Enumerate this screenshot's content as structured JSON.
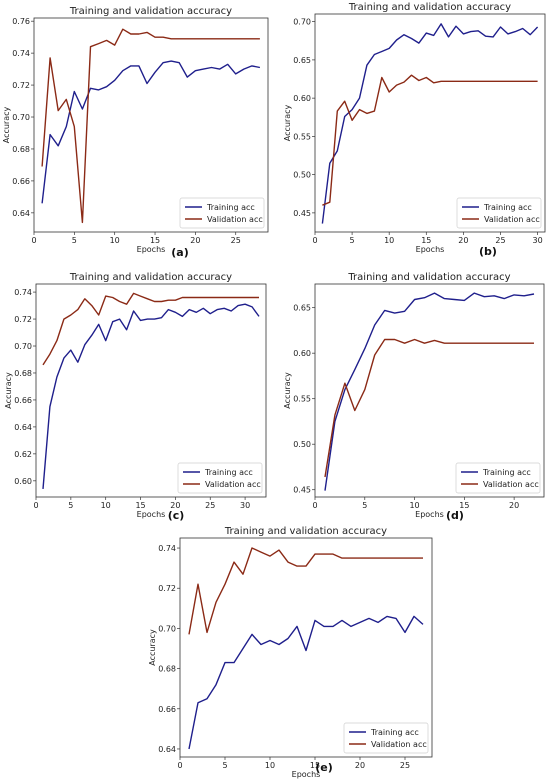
{
  "colors": {
    "training": "#1f1f8c",
    "validation": "#8b2a16"
  },
  "chart_data": [
    {
      "type": "line",
      "panel": "(a)",
      "title": "Training and validation accuracy",
      "xlabel": "Epochs",
      "ylabel": "Accuracy",
      "xlim": [
        0,
        29
      ],
      "ylim": [
        0.628,
        0.762
      ],
      "xticks": [
        0,
        5,
        10,
        15,
        20,
        25
      ],
      "yticks": [
        0.64,
        0.66,
        0.68,
        0.7,
        0.72,
        0.74,
        0.76
      ],
      "ytick_labels": [
        "0.64",
        "0.66",
        "0.68",
        "0.70",
        "0.72",
        "0.74",
        "0.76"
      ],
      "legend": "lower right",
      "series": [
        {
          "name": "Training acc",
          "x": [
            1,
            2,
            3,
            4,
            5,
            6,
            7,
            8,
            9,
            10,
            11,
            12,
            13,
            14,
            15,
            16,
            17,
            18,
            19,
            20,
            21,
            22,
            23,
            24,
            25,
            26,
            27,
            28
          ],
          "values": [
            0.646,
            0.689,
            0.682,
            0.694,
            0.716,
            0.705,
            0.718,
            0.717,
            0.719,
            0.723,
            0.729,
            0.732,
            0.732,
            0.721,
            0.728,
            0.734,
            0.735,
            0.734,
            0.725,
            0.729,
            0.73,
            0.731,
            0.73,
            0.733,
            0.727,
            0.73,
            0.732,
            0.731
          ]
        },
        {
          "name": "Validation acc",
          "x": [
            1,
            2,
            3,
            4,
            5,
            6,
            7,
            8,
            9,
            10,
            11,
            12,
            13,
            14,
            15,
            16,
            17,
            18,
            19,
            20,
            21,
            22,
            23,
            24,
            25,
            26,
            27,
            28
          ],
          "values": [
            0.669,
            0.737,
            0.704,
            0.711,
            0.694,
            0.634,
            0.744,
            0.746,
            0.748,
            0.745,
            0.755,
            0.752,
            0.752,
            0.753,
            0.75,
            0.75,
            0.749,
            0.749,
            0.749,
            0.749,
            0.749,
            0.749,
            0.749,
            0.749,
            0.749,
            0.749,
            0.749,
            0.749
          ]
        }
      ]
    },
    {
      "type": "line",
      "panel": "(b)",
      "title": "Training and validation accuracy",
      "xlabel": "Epochs",
      "ylabel": "Accuracy",
      "xlim": [
        0,
        31
      ],
      "ylim": [
        0.425,
        0.71
      ],
      "xticks": [
        0,
        5,
        10,
        15,
        20,
        25,
        30
      ],
      "yticks": [
        0.45,
        0.5,
        0.55,
        0.6,
        0.65,
        0.7
      ],
      "ytick_labels": [
        "0.45",
        "0.50",
        "0.55",
        "0.60",
        "0.65",
        "0.70"
      ],
      "legend": "lower right",
      "series": [
        {
          "name": "Training acc",
          "x": [
            1,
            2,
            3,
            4,
            5,
            6,
            7,
            8,
            9,
            10,
            11,
            12,
            13,
            14,
            15,
            16,
            17,
            18,
            19,
            20,
            21,
            22,
            23,
            24,
            25,
            26,
            27,
            28,
            29,
            30
          ],
          "values": [
            0.436,
            0.515,
            0.531,
            0.576,
            0.585,
            0.6,
            0.643,
            0.657,
            0.661,
            0.665,
            0.676,
            0.683,
            0.678,
            0.672,
            0.685,
            0.682,
            0.697,
            0.68,
            0.694,
            0.684,
            0.687,
            0.688,
            0.681,
            0.68,
            0.693,
            0.684,
            0.687,
            0.691,
            0.683,
            0.693
          ]
        },
        {
          "name": "Validation acc",
          "x": [
            1,
            2,
            3,
            4,
            5,
            6,
            7,
            8,
            9,
            10,
            11,
            12,
            13,
            14,
            15,
            16,
            17,
            18,
            19,
            20,
            21,
            22,
            23,
            24,
            25,
            26,
            27,
            28,
            29,
            30
          ],
          "values": [
            0.46,
            0.464,
            0.583,
            0.596,
            0.571,
            0.585,
            0.58,
            0.583,
            0.627,
            0.608,
            0.617,
            0.621,
            0.63,
            0.623,
            0.627,
            0.62,
            0.622,
            0.622,
            0.622,
            0.622,
            0.622,
            0.622,
            0.622,
            0.622,
            0.622,
            0.622,
            0.622,
            0.622,
            0.622,
            0.622
          ]
        }
      ]
    },
    {
      "type": "line",
      "panel": "(c)",
      "title": "Training and validation accuracy",
      "xlabel": "Epochs",
      "ylabel": "Accuracy",
      "xlim": [
        0,
        33
      ],
      "ylim": [
        0.588,
        0.746
      ],
      "xticks": [
        0,
        5,
        10,
        15,
        20,
        25,
        30
      ],
      "yticks": [
        0.6,
        0.62,
        0.64,
        0.66,
        0.68,
        0.7,
        0.72,
        0.74
      ],
      "ytick_labels": [
        "0.60",
        "0.62",
        "0.64",
        "0.66",
        "0.68",
        "0.70",
        "0.72",
        "0.74"
      ],
      "legend": "lower right",
      "series": [
        {
          "name": "Training acc",
          "x": [
            1,
            2,
            3,
            4,
            5,
            6,
            7,
            8,
            9,
            10,
            11,
            12,
            13,
            14,
            15,
            16,
            17,
            18,
            19,
            20,
            21,
            22,
            23,
            24,
            25,
            26,
            27,
            28,
            29,
            30,
            31,
            32
          ],
          "values": [
            0.594,
            0.655,
            0.677,
            0.691,
            0.697,
            0.688,
            0.701,
            0.708,
            0.716,
            0.704,
            0.718,
            0.72,
            0.712,
            0.726,
            0.719,
            0.72,
            0.72,
            0.721,
            0.727,
            0.725,
            0.722,
            0.727,
            0.725,
            0.728,
            0.724,
            0.727,
            0.728,
            0.726,
            0.73,
            0.731,
            0.729,
            0.722
          ]
        },
        {
          "name": "Validation acc",
          "x": [
            1,
            2,
            3,
            4,
            5,
            6,
            7,
            8,
            9,
            10,
            11,
            12,
            13,
            14,
            15,
            16,
            17,
            18,
            19,
            20,
            21,
            22,
            23,
            24,
            25,
            26,
            27,
            28,
            29,
            30,
            31,
            32
          ],
          "values": [
            0.686,
            0.694,
            0.704,
            0.72,
            0.723,
            0.727,
            0.735,
            0.73,
            0.723,
            0.737,
            0.736,
            0.733,
            0.731,
            0.739,
            0.737,
            0.735,
            0.733,
            0.733,
            0.734,
            0.734,
            0.736,
            0.736,
            0.736,
            0.736,
            0.736,
            0.736,
            0.736,
            0.736,
            0.736,
            0.736,
            0.736,
            0.736
          ]
        }
      ]
    },
    {
      "type": "line",
      "panel": "(d)",
      "title": "Training and validation accuracy",
      "xlabel": "Epochs",
      "ylabel": "Accuracy",
      "xlim": [
        0,
        23
      ],
      "ylim": [
        0.442,
        0.676
      ],
      "xticks": [
        0,
        5,
        10,
        15,
        20
      ],
      "yticks": [
        0.45,
        0.5,
        0.55,
        0.6,
        0.65
      ],
      "ytick_labels": [
        "0.45",
        "0.50",
        "0.55",
        "0.60",
        "0.65"
      ],
      "legend": "lower right",
      "series": [
        {
          "name": "Training acc",
          "x": [
            1,
            2,
            3,
            4,
            5,
            6,
            7,
            8,
            9,
            10,
            11,
            12,
            13,
            14,
            15,
            16,
            17,
            18,
            19,
            20,
            21,
            22
          ],
          "values": [
            0.449,
            0.525,
            0.56,
            0.582,
            0.605,
            0.631,
            0.647,
            0.644,
            0.646,
            0.659,
            0.661,
            0.666,
            0.66,
            0.659,
            0.658,
            0.666,
            0.662,
            0.663,
            0.66,
            0.664,
            0.663,
            0.665
          ]
        },
        {
          "name": "Validation acc",
          "x": [
            1,
            2,
            3,
            4,
            5,
            6,
            7,
            8,
            9,
            10,
            11,
            12,
            13,
            14,
            15,
            16,
            17,
            18,
            19,
            20,
            21,
            22
          ],
          "values": [
            0.464,
            0.532,
            0.567,
            0.537,
            0.56,
            0.598,
            0.615,
            0.615,
            0.611,
            0.615,
            0.611,
            0.614,
            0.611,
            0.611,
            0.611,
            0.611,
            0.611,
            0.611,
            0.611,
            0.611,
            0.611,
            0.611
          ]
        }
      ]
    },
    {
      "type": "line",
      "panel": "(e)",
      "title": "Training and validation accuracy",
      "xlabel": "Epochs",
      "ylabel": "Accuracy",
      "xlim": [
        0,
        28
      ],
      "ylim": [
        0.636,
        0.745
      ],
      "xticks": [
        0,
        5,
        10,
        15,
        20,
        25
      ],
      "yticks": [
        0.64,
        0.66,
        0.68,
        0.7,
        0.72,
        0.74
      ],
      "ytick_labels": [
        "0.64",
        "0.66",
        "0.68",
        "0.70",
        "0.72",
        "0.74"
      ],
      "legend": "lower right",
      "series": [
        {
          "name": "Training acc",
          "x": [
            1,
            2,
            3,
            4,
            5,
            6,
            7,
            8,
            9,
            10,
            11,
            12,
            13,
            14,
            15,
            16,
            17,
            18,
            19,
            20,
            21,
            22,
            23,
            24,
            25,
            26,
            27
          ],
          "values": [
            0.64,
            0.663,
            0.665,
            0.672,
            0.683,
            0.683,
            0.69,
            0.697,
            0.692,
            0.694,
            0.692,
            0.695,
            0.701,
            0.689,
            0.704,
            0.701,
            0.701,
            0.704,
            0.701,
            0.703,
            0.705,
            0.703,
            0.706,
            0.705,
            0.698,
            0.706,
            0.702
          ]
        },
        {
          "name": "Validation acc",
          "x": [
            1,
            2,
            3,
            4,
            5,
            6,
            7,
            8,
            9,
            10,
            11,
            12,
            13,
            14,
            15,
            16,
            17,
            18,
            19,
            20,
            21,
            22,
            23,
            24,
            25,
            26,
            27
          ],
          "values": [
            0.697,
            0.722,
            0.698,
            0.713,
            0.722,
            0.733,
            0.727,
            0.74,
            0.738,
            0.736,
            0.739,
            0.733,
            0.731,
            0.731,
            0.737,
            0.737,
            0.737,
            0.735,
            0.735,
            0.735,
            0.735,
            0.735,
            0.735,
            0.735,
            0.735,
            0.735,
            0.735
          ]
        }
      ]
    }
  ]
}
